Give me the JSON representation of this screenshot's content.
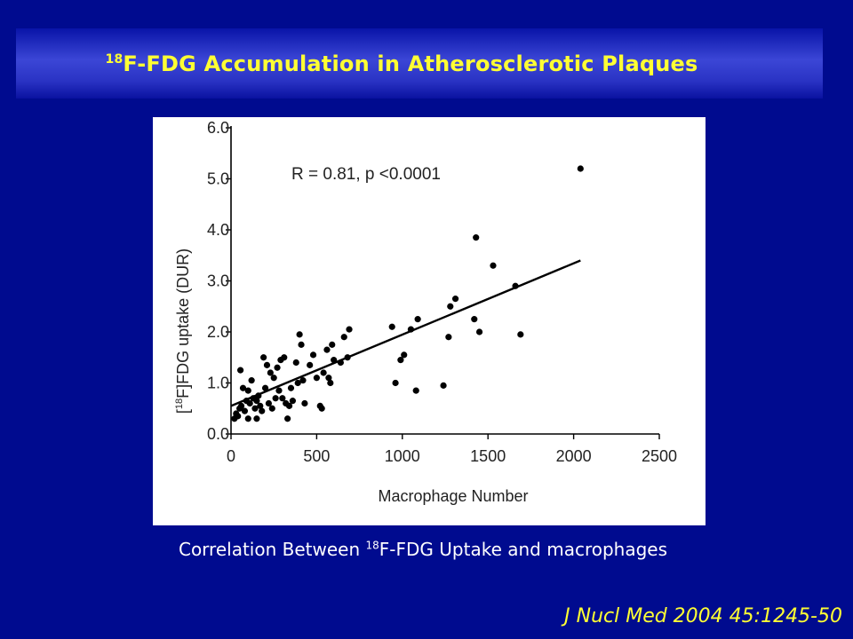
{
  "slide": {
    "title_sup": "18",
    "title_text": "F-FDG Accumulation in Atherosclerotic Plaques",
    "caption_pre": "Correlation Between ",
    "caption_sup": "18",
    "caption_post": "F-FDG Uptake and macrophages",
    "citation": "J Nucl Med 2004 45:1245-50",
    "colors": {
      "background": "#000b8f",
      "title": "#ffff33",
      "caption": "#ffffff"
    }
  },
  "chart_data": {
    "type": "scatter",
    "xlabel": "Macrophage Number",
    "ylabel_pre": "[",
    "ylabel_sup": "18",
    "ylabel_post": "F]FDG uptake (DUR)",
    "annotation": "R = 0.81, p <0.0001",
    "xlim": [
      0,
      2500
    ],
    "ylim": [
      0,
      6
    ],
    "x_ticks": [
      "0",
      "500",
      "1000",
      "1500",
      "2000",
      "2500"
    ],
    "y_ticks": [
      "0.0",
      "1.0",
      "2.0",
      "3.0",
      "4.0",
      "5.0",
      "6.0"
    ],
    "grid": false,
    "regression_line": {
      "x": [
        0,
        2040
      ],
      "y": [
        0.55,
        3.4
      ]
    },
    "points": [
      [
        20,
        0.3
      ],
      [
        30,
        0.4
      ],
      [
        40,
        0.35
      ],
      [
        50,
        0.5
      ],
      [
        55,
        1.25
      ],
      [
        60,
        0.55
      ],
      [
        70,
        0.9
      ],
      [
        80,
        0.45
      ],
      [
        90,
        0.65
      ],
      [
        100,
        0.3
      ],
      [
        100,
        0.85
      ],
      [
        110,
        0.6
      ],
      [
        120,
        1.05
      ],
      [
        130,
        0.7
      ],
      [
        140,
        0.5
      ],
      [
        150,
        0.3
      ],
      [
        150,
        0.65
      ],
      [
        160,
        0.75
      ],
      [
        170,
        0.55
      ],
      [
        180,
        0.45
      ],
      [
        190,
        1.5
      ],
      [
        200,
        0.9
      ],
      [
        210,
        1.35
      ],
      [
        220,
        0.6
      ],
      [
        230,
        1.2
      ],
      [
        240,
        0.5
      ],
      [
        250,
        1.1
      ],
      [
        260,
        0.7
      ],
      [
        270,
        1.3
      ],
      [
        280,
        0.85
      ],
      [
        290,
        1.45
      ],
      [
        300,
        0.7
      ],
      [
        310,
        1.5
      ],
      [
        320,
        0.6
      ],
      [
        330,
        0.3
      ],
      [
        340,
        0.55
      ],
      [
        350,
        0.9
      ],
      [
        360,
        0.65
      ],
      [
        380,
        1.4
      ],
      [
        390,
        1.0
      ],
      [
        400,
        1.95
      ],
      [
        410,
        1.75
      ],
      [
        420,
        1.05
      ],
      [
        430,
        0.6
      ],
      [
        460,
        1.35
      ],
      [
        480,
        1.55
      ],
      [
        500,
        1.1
      ],
      [
        520,
        0.55
      ],
      [
        530,
        0.5
      ],
      [
        540,
        1.2
      ],
      [
        560,
        1.65
      ],
      [
        570,
        1.1
      ],
      [
        580,
        1.0
      ],
      [
        590,
        1.75
      ],
      [
        600,
        1.45
      ],
      [
        640,
        1.4
      ],
      [
        660,
        1.9
      ],
      [
        680,
        1.5
      ],
      [
        690,
        2.05
      ],
      [
        940,
        2.1
      ],
      [
        960,
        1.0
      ],
      [
        990,
        1.45
      ],
      [
        1010,
        1.55
      ],
      [
        1050,
        2.05
      ],
      [
        1080,
        0.85
      ],
      [
        1090,
        2.25
      ],
      [
        1240,
        0.95
      ],
      [
        1270,
        1.9
      ],
      [
        1280,
        2.5
      ],
      [
        1310,
        2.65
      ],
      [
        1420,
        2.25
      ],
      [
        1430,
        3.85
      ],
      [
        1450,
        2.0
      ],
      [
        1530,
        3.3
      ],
      [
        1660,
        2.9
      ],
      [
        1690,
        1.95
      ],
      [
        2040,
        5.2
      ]
    ]
  }
}
